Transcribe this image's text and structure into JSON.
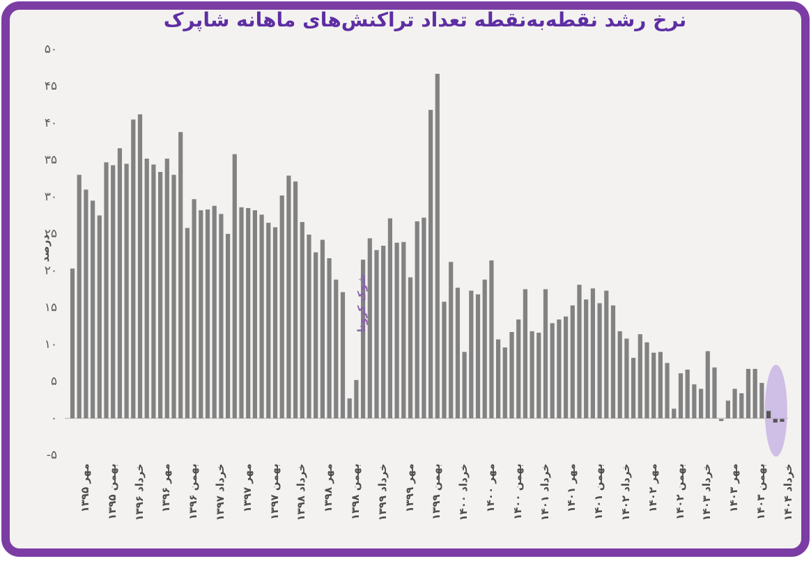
{
  "title": {
    "text": "نرخ رشد نقطه‌به‌نقطه تعداد تراکنش‌های ماهانه شاپرک",
    "color": "#5e2ea3"
  },
  "frame": {
    "border_color": "#7b3da3",
    "background": "#f3f2f0",
    "outer_background": "#ffffff"
  },
  "chart_data": {
    "type": "bar",
    "title": "نرخ رشد نقطه‌به‌نقطه تعداد تراکنش‌های ماهانه شاپرک",
    "xlabel": "",
    "ylabel": "درصد",
    "ylim": [
      -5,
      50
    ],
    "grid": false,
    "legend": null,
    "bar_color": "#828282",
    "recent_bar_color": "#565656",
    "recent_dark_count": 3,
    "axis_line_color": "#bdbab7",
    "ytick_values": [
      50,
      45,
      40,
      35,
      30,
      25,
      20,
      15,
      10,
      5,
      0,
      -5
    ],
    "ytick_labels": [
      "۵۰",
      "۴۵",
      "۴۰",
      "۳۵",
      "۳۰",
      "۲۵",
      "۲۰",
      "۱۵",
      "۱۰",
      "۵",
      "۰",
      "-۵"
    ],
    "xtick_every_n_bars": 4,
    "xtick_labels": [
      "مهر ۱۳۹۵",
      "بهمن ۱۳۹۵",
      "خرداد ۱۳۹۶",
      "مهر ۱۳۹۶",
      "بهمن ۱۳۹۶",
      "خرداد ۱۳۹۷",
      "مهر ۱۳۹۷",
      "بهمن ۱۳۹۷",
      "خرداد ۱۳۹۸",
      "مهر ۱۳۹۸",
      "بهمن ۱۳۹۸",
      "خرداد ۱۳۹۹",
      "مهر ۱۳۹۹",
      "بهمن ۱۳۹۹",
      "خرداد ۱۴۰۰",
      "مهر ۱۴۰۰",
      "بهمن ۱۴۰۰",
      "خرداد ۱۴۰۱",
      "مهر ۱۴۰۱",
      "بهمن ۱۴۰۱",
      "خرداد ۱۴۰۲",
      "مهر ۱۴۰۲",
      "بهمن ۱۴۰۲",
      "خرداد ۱۴۰۳",
      "مهر ۱۴۰۳",
      "بهمن ۱۴۰۳",
      "خرداد ۱۴۰۴"
    ],
    "values": [
      20.3,
      33.0,
      31.0,
      29.5,
      27.5,
      34.7,
      34.3,
      36.6,
      34.5,
      40.5,
      41.2,
      35.2,
      34.4,
      33.4,
      35.2,
      33.0,
      38.8,
      25.8,
      29.7,
      28.2,
      28.3,
      28.8,
      27.7,
      25.0,
      35.8,
      28.6,
      28.5,
      28.2,
      27.6,
      26.5,
      25.9,
      30.2,
      32.9,
      32.1,
      26.6,
      24.9,
      22.5,
      24.2,
      21.7,
      18.8,
      17.1,
      2.7,
      5.2,
      21.5,
      24.4,
      22.8,
      23.4,
      27.1,
      23.8,
      23.9,
      19.1,
      26.7,
      27.2,
      41.8,
      46.7,
      15.8,
      21.2,
      17.7,
      9.0,
      17.3,
      16.8,
      18.8,
      21.4,
      10.7,
      9.6,
      11.7,
      13.4,
      17.5,
      11.8,
      11.6,
      17.5,
      12.9,
      13.4,
      13.8,
      15.3,
      18.1,
      16.1,
      17.6,
      15.6,
      17.3,
      15.3,
      11.8,
      10.8,
      8.2,
      11.4,
      10.3,
      8.9,
      9.0,
      7.5,
      1.3,
      6.1,
      6.6,
      4.6,
      4.0,
      9.1,
      6.9,
      -0.3,
      2.4,
      4.0,
      3.4,
      6.7,
      6.7,
      4.8,
      1.0,
      -0.5,
      -0.4
    ],
    "annotations": [
      {
        "type": "vertical-text",
        "text": "شوک کرونا",
        "bar_index": 42,
        "color": "#8a63aa"
      },
      {
        "type": "ellipse-highlight",
        "covers_last_n_bars": 3,
        "color": "#c5b0e2"
      }
    ]
  }
}
